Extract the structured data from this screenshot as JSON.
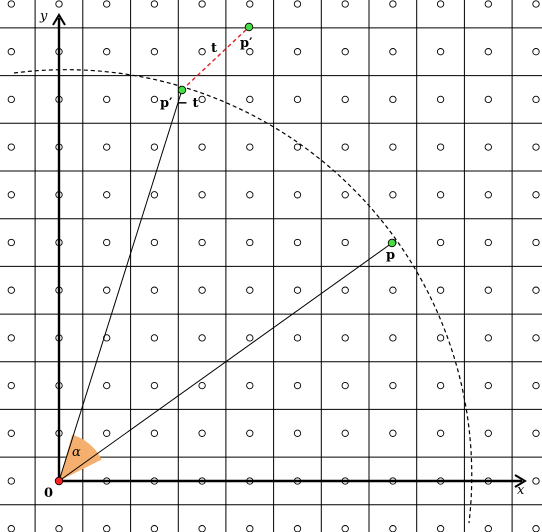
{
  "labels": {
    "x_axis": "x",
    "y_axis": "y",
    "origin": "0",
    "angle": "α",
    "vector_t": "t",
    "point_p": "p",
    "point_p_prime": "p′",
    "point_p_prime_minus_t": "p′ − t"
  },
  "colors": {
    "grid": "#000000",
    "axis": "#000000",
    "translation": "#e02020",
    "point_fill": "#44dd44",
    "origin_fill": "#ff2020",
    "angle_wedge": "#f5b070"
  }
}
